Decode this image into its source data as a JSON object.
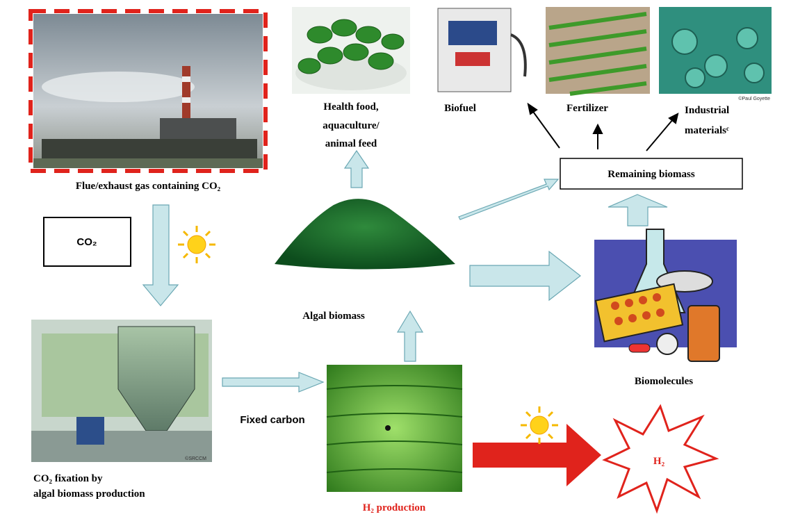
{
  "labels": {
    "flue_gas": "Flue/exhaust gas containing CO₂",
    "co2_box": "CO₂",
    "fixation": [
      "CO₂ fixation by",
      "algal biomass production"
    ],
    "health_food": [
      "Health food,",
      "aquaculture/",
      "animal feed"
    ],
    "biofuel": "Biofuel",
    "fertilizer": "Fertilizer",
    "industrial": [
      "Industrial",
      "materialsᶜ"
    ],
    "remaining": "Remaining biomass",
    "algal": "Algal biomass",
    "biomolecules": "Biomolecules",
    "fixed_carbon": "Fixed carbon",
    "h2_production": "H₂ production",
    "h2": "H₂"
  },
  "credits": [
    "©Paul Goyette",
    "©SRCCM"
  ]
}
